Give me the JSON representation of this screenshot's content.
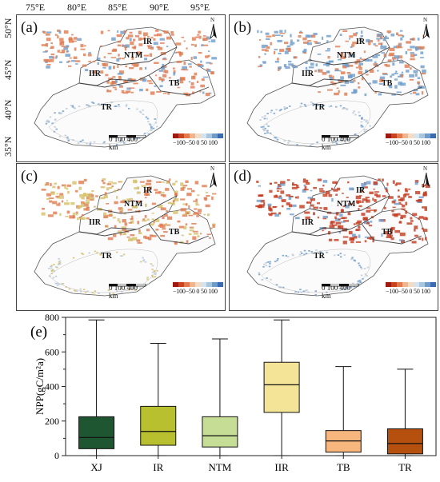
{
  "lon_labels": [
    "75°E",
    "80°E",
    "85°E",
    "90°E",
    "95°E"
  ],
  "lat_labels": [
    "50°N",
    "45°N",
    "40°N",
    "35°N"
  ],
  "panels": [
    {
      "label": "(a)",
      "regions": [
        "IR",
        "NTM",
        "IIR",
        "TB",
        "TR"
      ]
    },
    {
      "label": "(b)",
      "regions": [
        "IR",
        "NTM",
        "IIR",
        "TB",
        "TR"
      ]
    },
    {
      "label": "(c)",
      "regions": [
        "IR",
        "NTM",
        "IIR",
        "TB",
        "TR"
      ]
    },
    {
      "label": "(d)",
      "regions": [
        "IR",
        "NTM",
        "IIR",
        "TB",
        "TR"
      ]
    }
  ],
  "north_label": "N",
  "scalebar": {
    "text": "0 100   400",
    "unit": "km"
  },
  "legend": {
    "ticks": "−100−50  0   50 100",
    "colors": [
      "#9e1a10",
      "#c9431f",
      "#e4794b",
      "#f2b48c",
      "#f3dcc6",
      "#d5e3ee",
      "#a9c6df",
      "#6d9ccb",
      "#3a6ab2"
    ]
  },
  "map_colors": {
    "warm": "#e07b4f",
    "cool": "#6e9ccc",
    "strong": "#c43a1e",
    "sand": "#d4c06a"
  },
  "boxplot": {
    "panel_label": "(e)",
    "chart_data": {
      "type": "box",
      "ylabel": "NPP(gC/m²a)",
      "ylim": [
        0,
        800
      ],
      "yticks": [
        0,
        200,
        400,
        600,
        800
      ],
      "categories": [
        "XJ",
        "IR",
        "NTM",
        "IIR",
        "TB",
        "TR"
      ],
      "colors": [
        "#1e5631",
        "#b8c030",
        "#c5dd95",
        "#f4e497",
        "#f7b67d",
        "#b5500f"
      ],
      "stats": [
        {
          "min": 0,
          "q1": 40,
          "median": 105,
          "q3": 225,
          "max": 785
        },
        {
          "min": 0,
          "q1": 60,
          "median": 140,
          "q3": 285,
          "max": 650
        },
        {
          "min": 0,
          "q1": 50,
          "median": 115,
          "q3": 225,
          "max": 675
        },
        {
          "min": 0,
          "q1": 250,
          "median": 410,
          "q3": 540,
          "max": 785
        },
        {
          "min": 0,
          "q1": 20,
          "median": 85,
          "q3": 145,
          "max": 515
        },
        {
          "min": 0,
          "q1": 10,
          "median": 70,
          "q3": 155,
          "max": 500
        }
      ]
    }
  }
}
